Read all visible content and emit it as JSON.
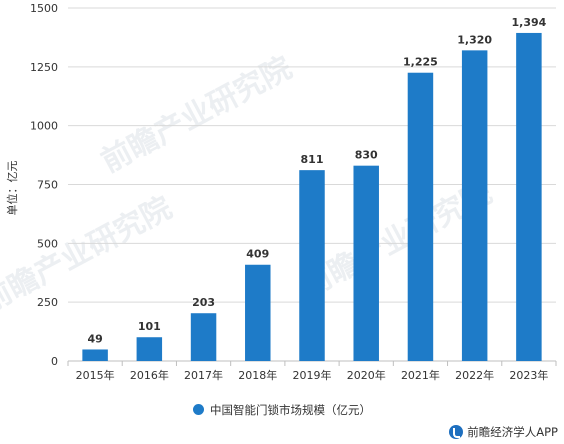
{
  "chart_data": {
    "type": "bar",
    "categories": [
      "2015年",
      "2016年",
      "2017年",
      "2018年",
      "2019年",
      "2020年",
      "2021年",
      "2022年",
      "2023年"
    ],
    "series": [
      {
        "name": "中国智能门锁市场规模（亿元）",
        "values": [
          49,
          101,
          203,
          409,
          811,
          830,
          1225,
          1320,
          1394
        ],
        "value_labels": [
          "49",
          "101",
          "203",
          "409",
          "811",
          "830",
          "1,225",
          "1,320",
          "1,394"
        ],
        "color": "#1e7bc8"
      }
    ],
    "ylabel": "单位：亿元",
    "xlabel": "",
    "ylim": [
      0,
      1500
    ],
    "yticks": [
      0,
      250,
      500,
      750,
      1000,
      1250,
      1500
    ],
    "grid": true,
    "legend_position": "bottom"
  },
  "legend": {
    "label": "中国智能门锁市场规模（亿元）"
  },
  "watermark": {
    "text": "前瞻产业研究院"
  },
  "brand": {
    "text": "前瞻经济学人APP"
  }
}
